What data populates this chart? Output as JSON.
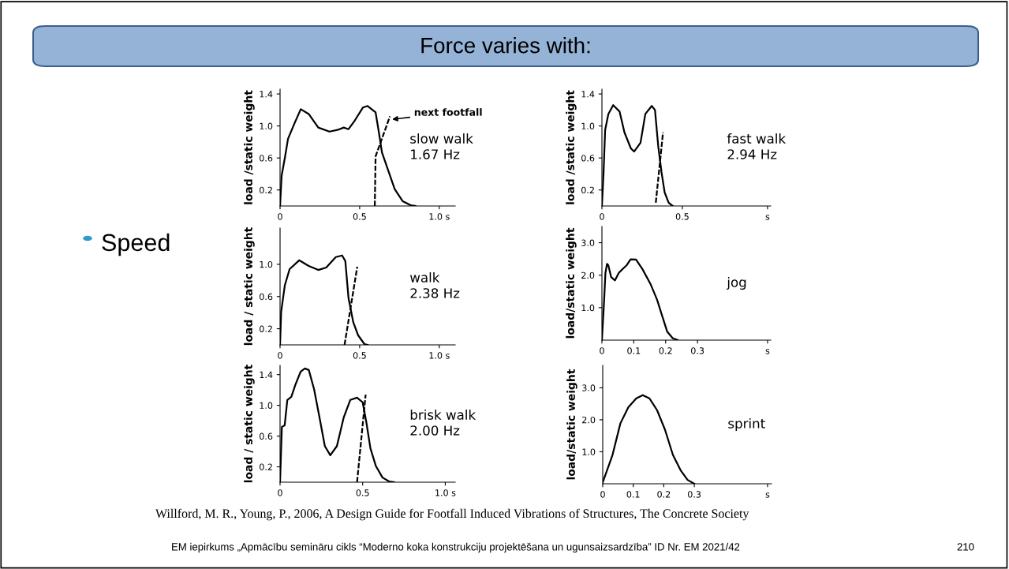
{
  "chart_data": [
    {
      "type": "other",
      "title": "Force varies with:",
      "annotations": [
        "Speed",
        "Willford, M. R., Young, P., 2006, A Design Guide for Footfall Induced Vibrations of Structures, The Concrete Society",
        "EM iepirkums „Apmācību semināru cikls “Moderno koka konstrukciju projektēšana un ugunsaizsardzība” ID Nr. EM 2021/42",
        "210"
      ]
    },
    {
      "type": "line",
      "ylabel": "load /static weight",
      "xlim": [
        0,
        1.1
      ],
      "ylim": [
        0,
        1.46
      ],
      "xticks": [
        0,
        0.5,
        {
          "value": 1.0,
          "label": "1.0 s"
        }
      ],
      "yticks": [
        0.2,
        0.6,
        {
          "value": 1,
          "label": "1.0"
        },
        1.4
      ],
      "series": [
        {
          "color": "#000000",
          "x": [
            0,
            0.01,
            0.03,
            0.05,
            0.09,
            0.13,
            0.18,
            0.24,
            0.31,
            0.36,
            0.4,
            0.43,
            0.47,
            0.52,
            0.55,
            0.6,
            0.62,
            0.64,
            0.68,
            0.72,
            0.77,
            0.82,
            0.85
          ],
          "values": [
            0,
            0.38,
            0.6,
            0.84,
            1.03,
            1.21,
            1.15,
            0.98,
            0.93,
            0.95,
            0.98,
            0.96,
            1.07,
            1.23,
            1.25,
            1.17,
            0.93,
            0.67,
            0.44,
            0.21,
            0.06,
            0.01,
            0
          ]
        },
        {
          "color": "#000000",
          "line_style": "dashed",
          "x": [
            0.595,
            0.6,
            0.69
          ],
          "values": [
            0,
            0.62,
            1.12
          ]
        }
      ],
      "annotations": [
        "slow walk\n1.67 Hz",
        {
          "text": "next footfall",
          "x": 0.69,
          "y": 1.08
        }
      ]
    },
    {
      "type": "line",
      "ylabel": "load /static weight",
      "xlim": [
        0,
        1.05
      ],
      "ylim": [
        0,
        1.46
      ],
      "xticks": [
        0,
        0.5,
        {
          "value": 1.03,
          "label": "s"
        }
      ],
      "yticks": [
        0.2,
        0.6,
        {
          "value": 1,
          "label": "1.0"
        },
        1.4
      ],
      "series": [
        {
          "color": "#000000",
          "x": [
            0,
            0.01,
            0.02,
            0.04,
            0.07,
            0.11,
            0.14,
            0.18,
            0.2,
            0.24,
            0.27,
            0.31,
            0.33,
            0.35,
            0.37,
            0.39,
            0.415,
            0.44
          ],
          "values": [
            0,
            0.41,
            0.95,
            1.15,
            1.26,
            1.18,
            0.92,
            0.72,
            0.68,
            0.79,
            1.15,
            1.25,
            1.2,
            0.75,
            0.43,
            0.17,
            0.04,
            0
          ]
        },
        {
          "color": "#000000",
          "line_style": "dashed",
          "x": [
            0.335,
            0.38
          ],
          "values": [
            0.04,
            0.92
          ]
        }
      ],
      "annotations": [
        "fast walk\n2.94 Hz"
      ]
    },
    {
      "type": "line",
      "ylabel": "load / static weight",
      "xlim": [
        0,
        1.1
      ],
      "ylim": [
        0,
        1.45
      ],
      "xticks": [
        0,
        0.5,
        {
          "value": 1.0,
          "label": "1.0 s"
        }
      ],
      "yticks": [
        0.2,
        0.6,
        {
          "value": 1,
          "label": "1.0"
        }
      ],
      "series": [
        {
          "color": "#000000",
          "x": [
            0,
            0.007,
            0.03,
            0.06,
            0.12,
            0.18,
            0.24,
            0.29,
            0.35,
            0.39,
            0.41,
            0.43,
            0.46,
            0.49,
            0.53,
            0.55
          ],
          "values": [
            0,
            0.41,
            0.74,
            0.94,
            1.05,
            0.98,
            0.93,
            0.96,
            1.09,
            1.11,
            1.04,
            0.58,
            0.28,
            0.12,
            0.01,
            0
          ]
        },
        {
          "color": "#000000",
          "line_style": "dashed",
          "x": [
            0.405,
            0.485
          ],
          "values": [
            0,
            0.97
          ]
        }
      ],
      "annotations": [
        "walk\n2.38 Hz"
      ]
    },
    {
      "type": "line",
      "ylabel": "load/static weight",
      "xlim": [
        0,
        0.53
      ],
      "ylim": [
        0,
        3.5
      ],
      "xticks": [
        0,
        0.1,
        0.2,
        0.3,
        {
          "value": 0.52,
          "label": "s"
        }
      ],
      "yticks": [
        {
          "value": 1,
          "label": "1.0"
        },
        {
          "value": 2,
          "label": "2.0"
        },
        {
          "value": 3,
          "label": "3.0"
        }
      ],
      "series": [
        {
          "color": "#000000",
          "x": [
            0,
            0.007,
            0.011,
            0.016,
            0.02,
            0.029,
            0.041,
            0.053,
            0.066,
            0.078,
            0.09,
            0.107,
            0.127,
            0.152,
            0.173,
            0.189,
            0.205,
            0.222,
            0.238
          ],
          "values": [
            0,
            1.25,
            2.07,
            2.35,
            2.31,
            1.94,
            1.84,
            2.07,
            2.2,
            2.31,
            2.49,
            2.48,
            2.19,
            1.74,
            1.25,
            0.75,
            0.26,
            0.06,
            0
          ]
        }
      ],
      "annotations": [
        "jog"
      ]
    },
    {
      "type": "line",
      "ylabel": "load / static weight",
      "xlim": [
        0,
        1.06
      ],
      "ylim": [
        0,
        1.52
      ],
      "xticks": [
        0,
        0.5,
        {
          "value": 1.0,
          "label": "1.0 s"
        }
      ],
      "yticks": [
        0.2,
        0.6,
        {
          "value": 1,
          "label": "1.0"
        },
        1.4
      ],
      "series": [
        {
          "color": "#000000",
          "x": [
            0,
            0.011,
            0.028,
            0.044,
            0.068,
            0.093,
            0.125,
            0.15,
            0.174,
            0.206,
            0.239,
            0.271,
            0.304,
            0.344,
            0.385,
            0.425,
            0.466,
            0.5,
            0.523,
            0.547,
            0.58,
            0.62,
            0.66,
            0.69
          ],
          "values": [
            0,
            0.72,
            0.74,
            1.07,
            1.11,
            1.27,
            1.44,
            1.48,
            1.46,
            1.21,
            0.84,
            0.47,
            0.35,
            0.47,
            0.84,
            1.07,
            1.1,
            1.04,
            0.77,
            0.44,
            0.21,
            0.06,
            0.01,
            0
          ]
        },
        {
          "color": "#000000",
          "line_style": "dashed",
          "x": [
            0.466,
            0.518
          ],
          "values": [
            0,
            1.14
          ]
        }
      ],
      "annotations": [
        "brisk walk\n2.00 Hz"
      ]
    },
    {
      "type": "line",
      "ylabel": "load/static weight",
      "xlim": [
        0,
        0.553
      ],
      "ylim": [
        0,
        3.7
      ],
      "xticks": [
        0,
        0.1,
        0.2,
        0.3,
        {
          "value": 0.54,
          "label": "s"
        }
      ],
      "yticks": [
        {
          "value": 1,
          "label": "1.0"
        },
        {
          "value": 2,
          "label": "2.0"
        },
        {
          "value": 3,
          "label": "3.0"
        }
      ],
      "series": [
        {
          "color": "#000000",
          "x": [
            0,
            0.032,
            0.058,
            0.084,
            0.11,
            0.131,
            0.153,
            0.178,
            0.204,
            0.23,
            0.256,
            0.278,
            0.3
          ],
          "values": [
            0.04,
            0.9,
            1.89,
            2.39,
            2.67,
            2.77,
            2.67,
            2.3,
            1.69,
            0.9,
            0.41,
            0.12,
            0
          ]
        }
      ],
      "annotations": [
        "sprint"
      ]
    }
  ]
}
